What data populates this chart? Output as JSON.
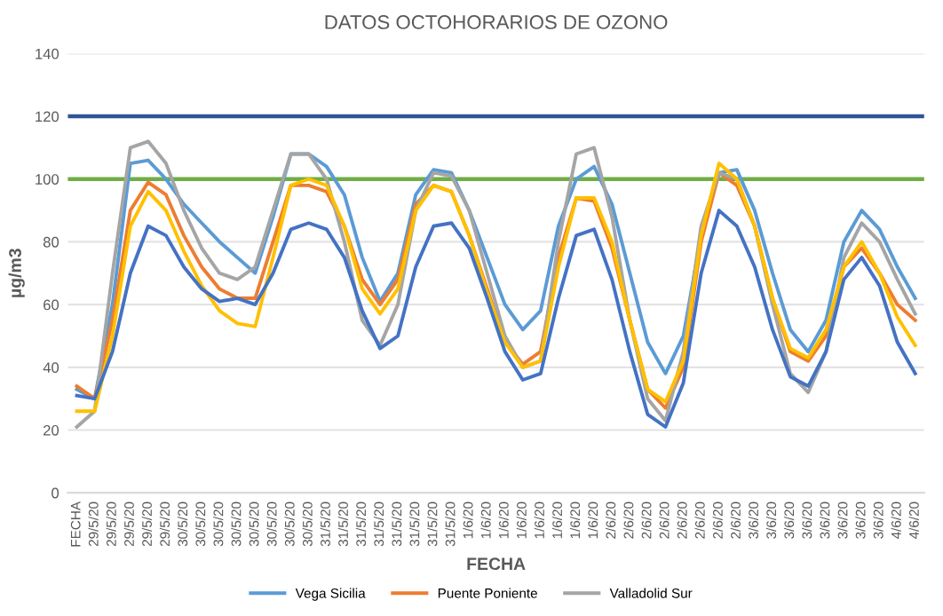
{
  "chart_data": {
    "type": "line",
    "title": "DATOS OCTOHORARIOS DE OZONO",
    "xlabel": "FECHA",
    "ylabel": "µg/m3",
    "categories": [
      "FECHA",
      "29/5/20",
      "29/5/20",
      "29/5/20",
      "29/5/20",
      "29/5/20",
      "30/5/20",
      "30/5/20",
      "30/5/20",
      "30/5/20",
      "30/5/20",
      "30/5/20",
      "30/5/20",
      "30/5/20",
      "31/5/20",
      "31/5/20",
      "31/5/20",
      "31/5/20",
      "31/5/20",
      "31/5/20",
      "31/5/20",
      "31/5/20",
      "1/6/20",
      "1/6/20",
      "1/6/20",
      "1/6/20",
      "1/6/20",
      "1/6/20",
      "1/6/20",
      "1/6/20",
      "2/6/20",
      "2/6/20",
      "2/6/20",
      "2/6/20",
      "2/6/20",
      "2/6/20",
      "2/6/20",
      "2/6/20",
      "3/6/20",
      "3/6/20",
      "3/6/20",
      "3/6/20",
      "3/6/20",
      "3/6/20",
      "3/6/20",
      "3/6/20",
      "4/6/20",
      "4/6/20"
    ],
    "series": [
      {
        "name": "Vega Sicilia",
        "color": "#5b9bd5",
        "values": [
          33,
          30,
          60,
          105,
          106,
          100,
          92,
          86,
          80,
          75,
          70,
          88,
          108,
          108,
          104,
          95,
          75,
          61,
          70,
          95,
          103,
          102,
          90,
          75,
          60,
          52,
          58,
          85,
          100,
          104,
          92,
          70,
          48,
          38,
          50,
          82,
          102,
          103,
          90,
          70,
          52,
          45,
          55,
          80,
          90,
          84,
          72,
          62
        ]
      },
      {
        "name": "Puente Poniente",
        "color": "#ed7d31",
        "values": [
          34,
          30,
          55,
          90,
          99,
          95,
          82,
          72,
          65,
          62,
          62,
          80,
          98,
          98,
          96,
          85,
          68,
          60,
          68,
          92,
          98,
          96,
          82,
          65,
          48,
          41,
          45,
          75,
          94,
          93,
          78,
          55,
          33,
          27,
          40,
          80,
          102,
          98,
          85,
          62,
          45,
          42,
          50,
          72,
          78,
          70,
          60,
          55
        ]
      },
      {
        "name": "Valladolid Sur",
        "color": "#a5a5a5",
        "values": [
          21,
          26,
          70,
          110,
          112,
          105,
          90,
          78,
          70,
          68,
          72,
          90,
          108,
          108,
          100,
          80,
          55,
          47,
          60,
          90,
          102,
          101,
          90,
          70,
          50,
          40,
          42,
          80,
          108,
          110,
          88,
          55,
          30,
          23,
          45,
          85,
          102,
          100,
          85,
          60,
          38,
          32,
          45,
          75,
          86,
          80,
          68,
          57
        ]
      },
      {
        "color": "#ffc000",
        "values": [
          26,
          26,
          50,
          85,
          96,
          90,
          77,
          66,
          58,
          54,
          53,
          75,
          98,
          100,
          98,
          85,
          65,
          57,
          65,
          90,
          98,
          96,
          82,
          64,
          48,
          40,
          42,
          72,
          94,
          94,
          80,
          55,
          33,
          29,
          42,
          82,
          105,
          100,
          85,
          62,
          46,
          43,
          52,
          72,
          80,
          70,
          56,
          47
        ]
      },
      {
        "color": "#4472c4",
        "values": [
          31,
          30,
          45,
          70,
          85,
          82,
          72,
          65,
          61,
          62,
          60,
          70,
          84,
          86,
          84,
          75,
          58,
          46,
          50,
          72,
          85,
          86,
          78,
          62,
          45,
          36,
          38,
          62,
          82,
          84,
          68,
          45,
          25,
          21,
          35,
          70,
          90,
          85,
          72,
          52,
          37,
          34,
          45,
          68,
          75,
          66,
          48,
          38
        ]
      }
    ],
    "ylim": [
      0,
      140
    ],
    "yticks": [
      0,
      20,
      40,
      60,
      80,
      100,
      120,
      140
    ],
    "grid": "y",
    "legend": "bottom",
    "marker": "none",
    "line_style": "solid",
    "ref_lines": [
      {
        "axis": "y",
        "value": 120,
        "color": "#2f5597"
      },
      {
        "axis": "y",
        "value": 100,
        "color": "#70ad47"
      }
    ]
  }
}
